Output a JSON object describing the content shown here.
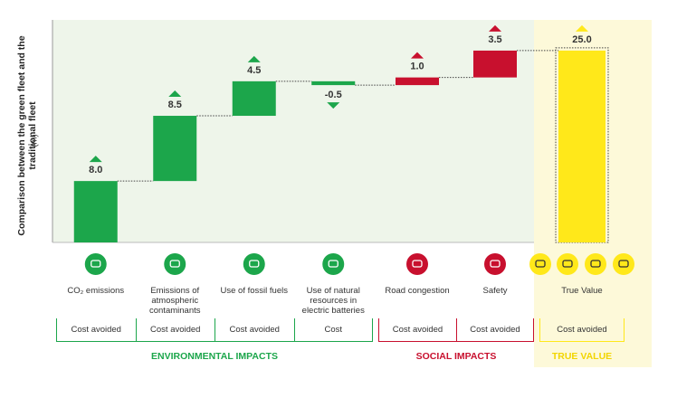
{
  "chart_data": {
    "type": "waterfall",
    "ylabel": "Comparison between the green fleet and the traditional fleet",
    "yunit": "(m)",
    "categories": [
      "CO₂ emissions",
      "Emissions of atmospheric contaminants",
      "Use of fossil fuels",
      "Use of natural resources in electric batteries",
      "Road congestion",
      "Safety",
      "True Value"
    ],
    "values": [
      8.0,
      8.5,
      4.5,
      -0.5,
      1.0,
      3.5,
      25.0
    ],
    "value_labels": [
      "8.0",
      "8.5",
      "4.5",
      "-0.5",
      "1.0",
      "3.5",
      "25.0"
    ],
    "measure": [
      "relative",
      "relative",
      "relative",
      "relative",
      "relative",
      "relative",
      "total"
    ],
    "colors": [
      "#1ca64b",
      "#1ca64b",
      "#1ca64b",
      "#1ca64b",
      "#c8102e",
      "#c8102e",
      "#ffe81a"
    ],
    "ylim": [
      0,
      29
    ],
    "groups": [
      {
        "name": "ENVIRONMENTAL IMPACTS",
        "color": "#1ca64b",
        "costs": [
          "Cost avoided",
          "Cost avoided",
          "Cost avoided",
          "Cost"
        ]
      },
      {
        "name": "SOCIAL IMPACTS",
        "color": "#c8102e",
        "costs": [
          "Cost avoided",
          "Cost avoided"
        ]
      },
      {
        "name": "TRUE VALUE",
        "color": "#ffe81a",
        "costs": [
          "Cost avoided"
        ]
      }
    ]
  }
}
